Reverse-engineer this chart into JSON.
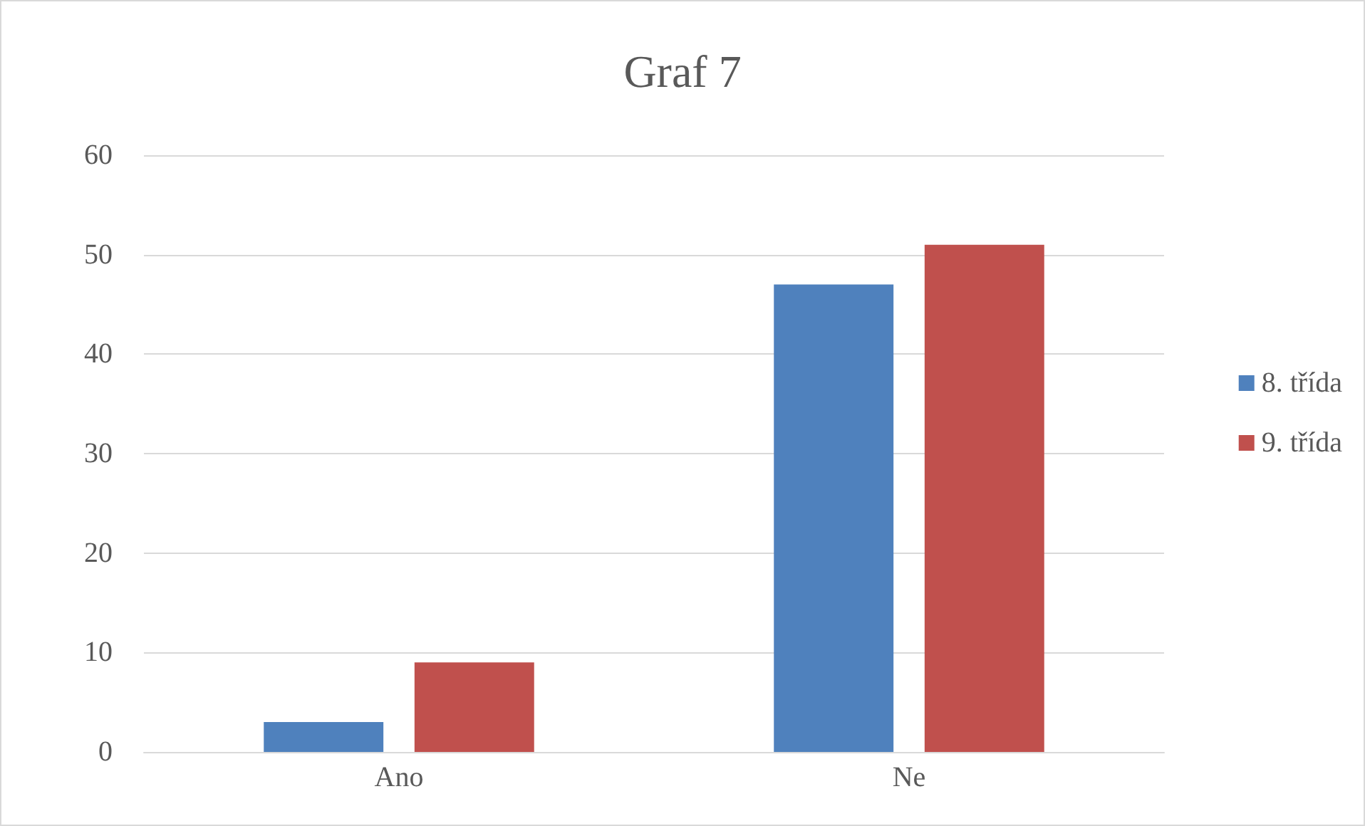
{
  "chart_data": {
    "type": "bar",
    "title": "Graf 7",
    "categories": [
      "Ano",
      "Ne"
    ],
    "series": [
      {
        "name": "8. třída",
        "color": "#4f81bd",
        "values": [
          3,
          47
        ]
      },
      {
        "name": "9. třída",
        "color": "#c0504d",
        "values": [
          9,
          51
        ]
      }
    ],
    "ylim": [
      0,
      60
    ],
    "yticks": [
      0,
      10,
      20,
      30,
      40,
      50,
      60
    ],
    "grid": "y",
    "legend": "right"
  }
}
